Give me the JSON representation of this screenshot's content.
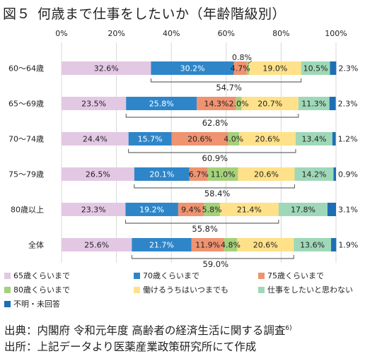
{
  "title": {
    "number": "図５",
    "text": "何歳まで仕事をしたいか（年齢階級別）"
  },
  "colors": [
    "#e3c8e4",
    "#2e86c9",
    "#ef9370",
    "#a5d17a",
    "#ffe189",
    "#9fd8b8",
    "#1d6fb5"
  ],
  "chart_data": {
    "type": "bar",
    "orientation": "horizontal",
    "stacked": true,
    "xlim": [
      0,
      100
    ],
    "x_ticks": [
      "0%",
      "20%",
      "40%",
      "60%",
      "80%",
      "100%"
    ],
    "grid": true,
    "legend_position": "bottom",
    "categories": [
      "60〜64歳",
      "65〜69歳",
      "70〜74歳",
      "75〜79歳",
      "80歳以上",
      "全体"
    ],
    "series": [
      {
        "name": "65歳くらいまで",
        "values": [
          32.6,
          23.5,
          24.4,
          26.5,
          23.3,
          25.6
        ],
        "labels": [
          "32.6%",
          "23.5%",
          "24.4%",
          "26.5%",
          "23.3%",
          "25.6%"
        ]
      },
      {
        "name": "70歳くらいまで",
        "values": [
          30.2,
          25.8,
          15.7,
          20.1,
          19.2,
          21.7
        ],
        "labels": [
          "30.2%",
          "25.8%",
          "15.7%",
          "20.1%",
          "19.2%",
          "21.7%"
        ]
      },
      {
        "name": "75歳くらいまで",
        "values": [
          4.7,
          14.3,
          20.6,
          6.7,
          9.4,
          11.9
        ],
        "labels": [
          "4.7%",
          "14.3%",
          "20.6%",
          "6.7%",
          "9.4%",
          "11.9%"
        ]
      },
      {
        "name": "80歳くらいまで",
        "values": [
          0.8,
          2.0,
          4.0,
          11.0,
          5.8,
          4.8
        ],
        "labels": [
          "0.8%",
          "2.0%",
          "4.0%",
          "11.0%",
          "5.8%",
          "4.8%"
        ]
      },
      {
        "name": "働けるうちはいつまでも",
        "values": [
          19.0,
          20.7,
          20.6,
          20.6,
          21.4,
          20.6
        ],
        "labels": [
          "19.0%",
          "20.7%",
          "20.6%",
          "20.6%",
          "21.4%",
          "20.6%"
        ]
      },
      {
        "name": "仕事をしたいと思わない",
        "values": [
          10.5,
          11.3,
          13.4,
          14.2,
          17.8,
          13.6
        ],
        "labels": [
          "10.5%",
          "11.3%",
          "13.4%",
          "14.2%",
          "17.8%",
          "13.6%"
        ]
      },
      {
        "name": "不明・未回答",
        "values": [
          2.3,
          2.3,
          1.2,
          0.9,
          3.1,
          1.9
        ],
        "labels": [
          "2.3%",
          "2.3%",
          "1.2%",
          "0.9%",
          "3.1%",
          "1.9%"
        ]
      }
    ],
    "bracket_totals": [
      "54.7%",
      "62.8%",
      "60.9%",
      "58.4%",
      "55.8%",
      "59.0%"
    ]
  },
  "source": {
    "line1": "出典：内閣府 令和元年度 高齢者の経済生活に関する調査",
    "line1_note": "6)",
    "line2": "出所：上記データより医薬産業政策研究所にて作成"
  }
}
